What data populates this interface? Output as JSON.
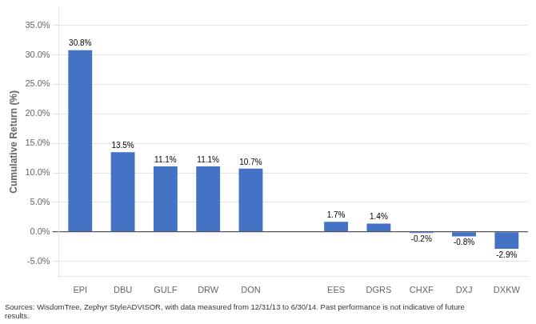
{
  "chart_data": {
    "type": "bar",
    "categories": [
      "EPI",
      "DBU",
      "GULF",
      "DRW",
      "DON",
      null,
      "EES",
      "DGRS",
      "CHXF",
      "DXJ",
      "DXKW"
    ],
    "values": [
      30.8,
      13.5,
      11.1,
      11.1,
      10.7,
      null,
      1.7,
      1.4,
      -0.2,
      -0.8,
      -2.9
    ],
    "value_labels": [
      "30.8%",
      "13.5%",
      "11.1%",
      "11.1%",
      "10.7%",
      null,
      "1.7%",
      "1.4%",
      "-0.2%",
      "-0.8%",
      "-2.9%"
    ],
    "data_labels": true,
    "color": "#4472C4",
    "ylabel": "Cumulative Return (%)",
    "ylim": [
      -7.5,
      38
    ],
    "yticks": [
      {
        "value": -5.0,
        "label": "-5.0%"
      },
      {
        "value": 0.0,
        "label": "0.0%"
      },
      {
        "value": 5.0,
        "label": "5.0%"
      },
      {
        "value": 10.0,
        "label": "10.0%"
      },
      {
        "value": 15.0,
        "label": "15.0%"
      },
      {
        "value": 20.0,
        "label": "20.0%"
      },
      {
        "value": 25.0,
        "label": "25.0%"
      },
      {
        "value": 30.0,
        "label": "30.0%"
      },
      {
        "value": 35.0,
        "label": "35.0%"
      }
    ],
    "grid": true,
    "footnote": [
      "Sources: WisdomTree, Zephyr StyleADVISOR, with data measured from 12/31/13 to 6/30/14. Past performance is not indicative of future",
      "results."
    ]
  }
}
